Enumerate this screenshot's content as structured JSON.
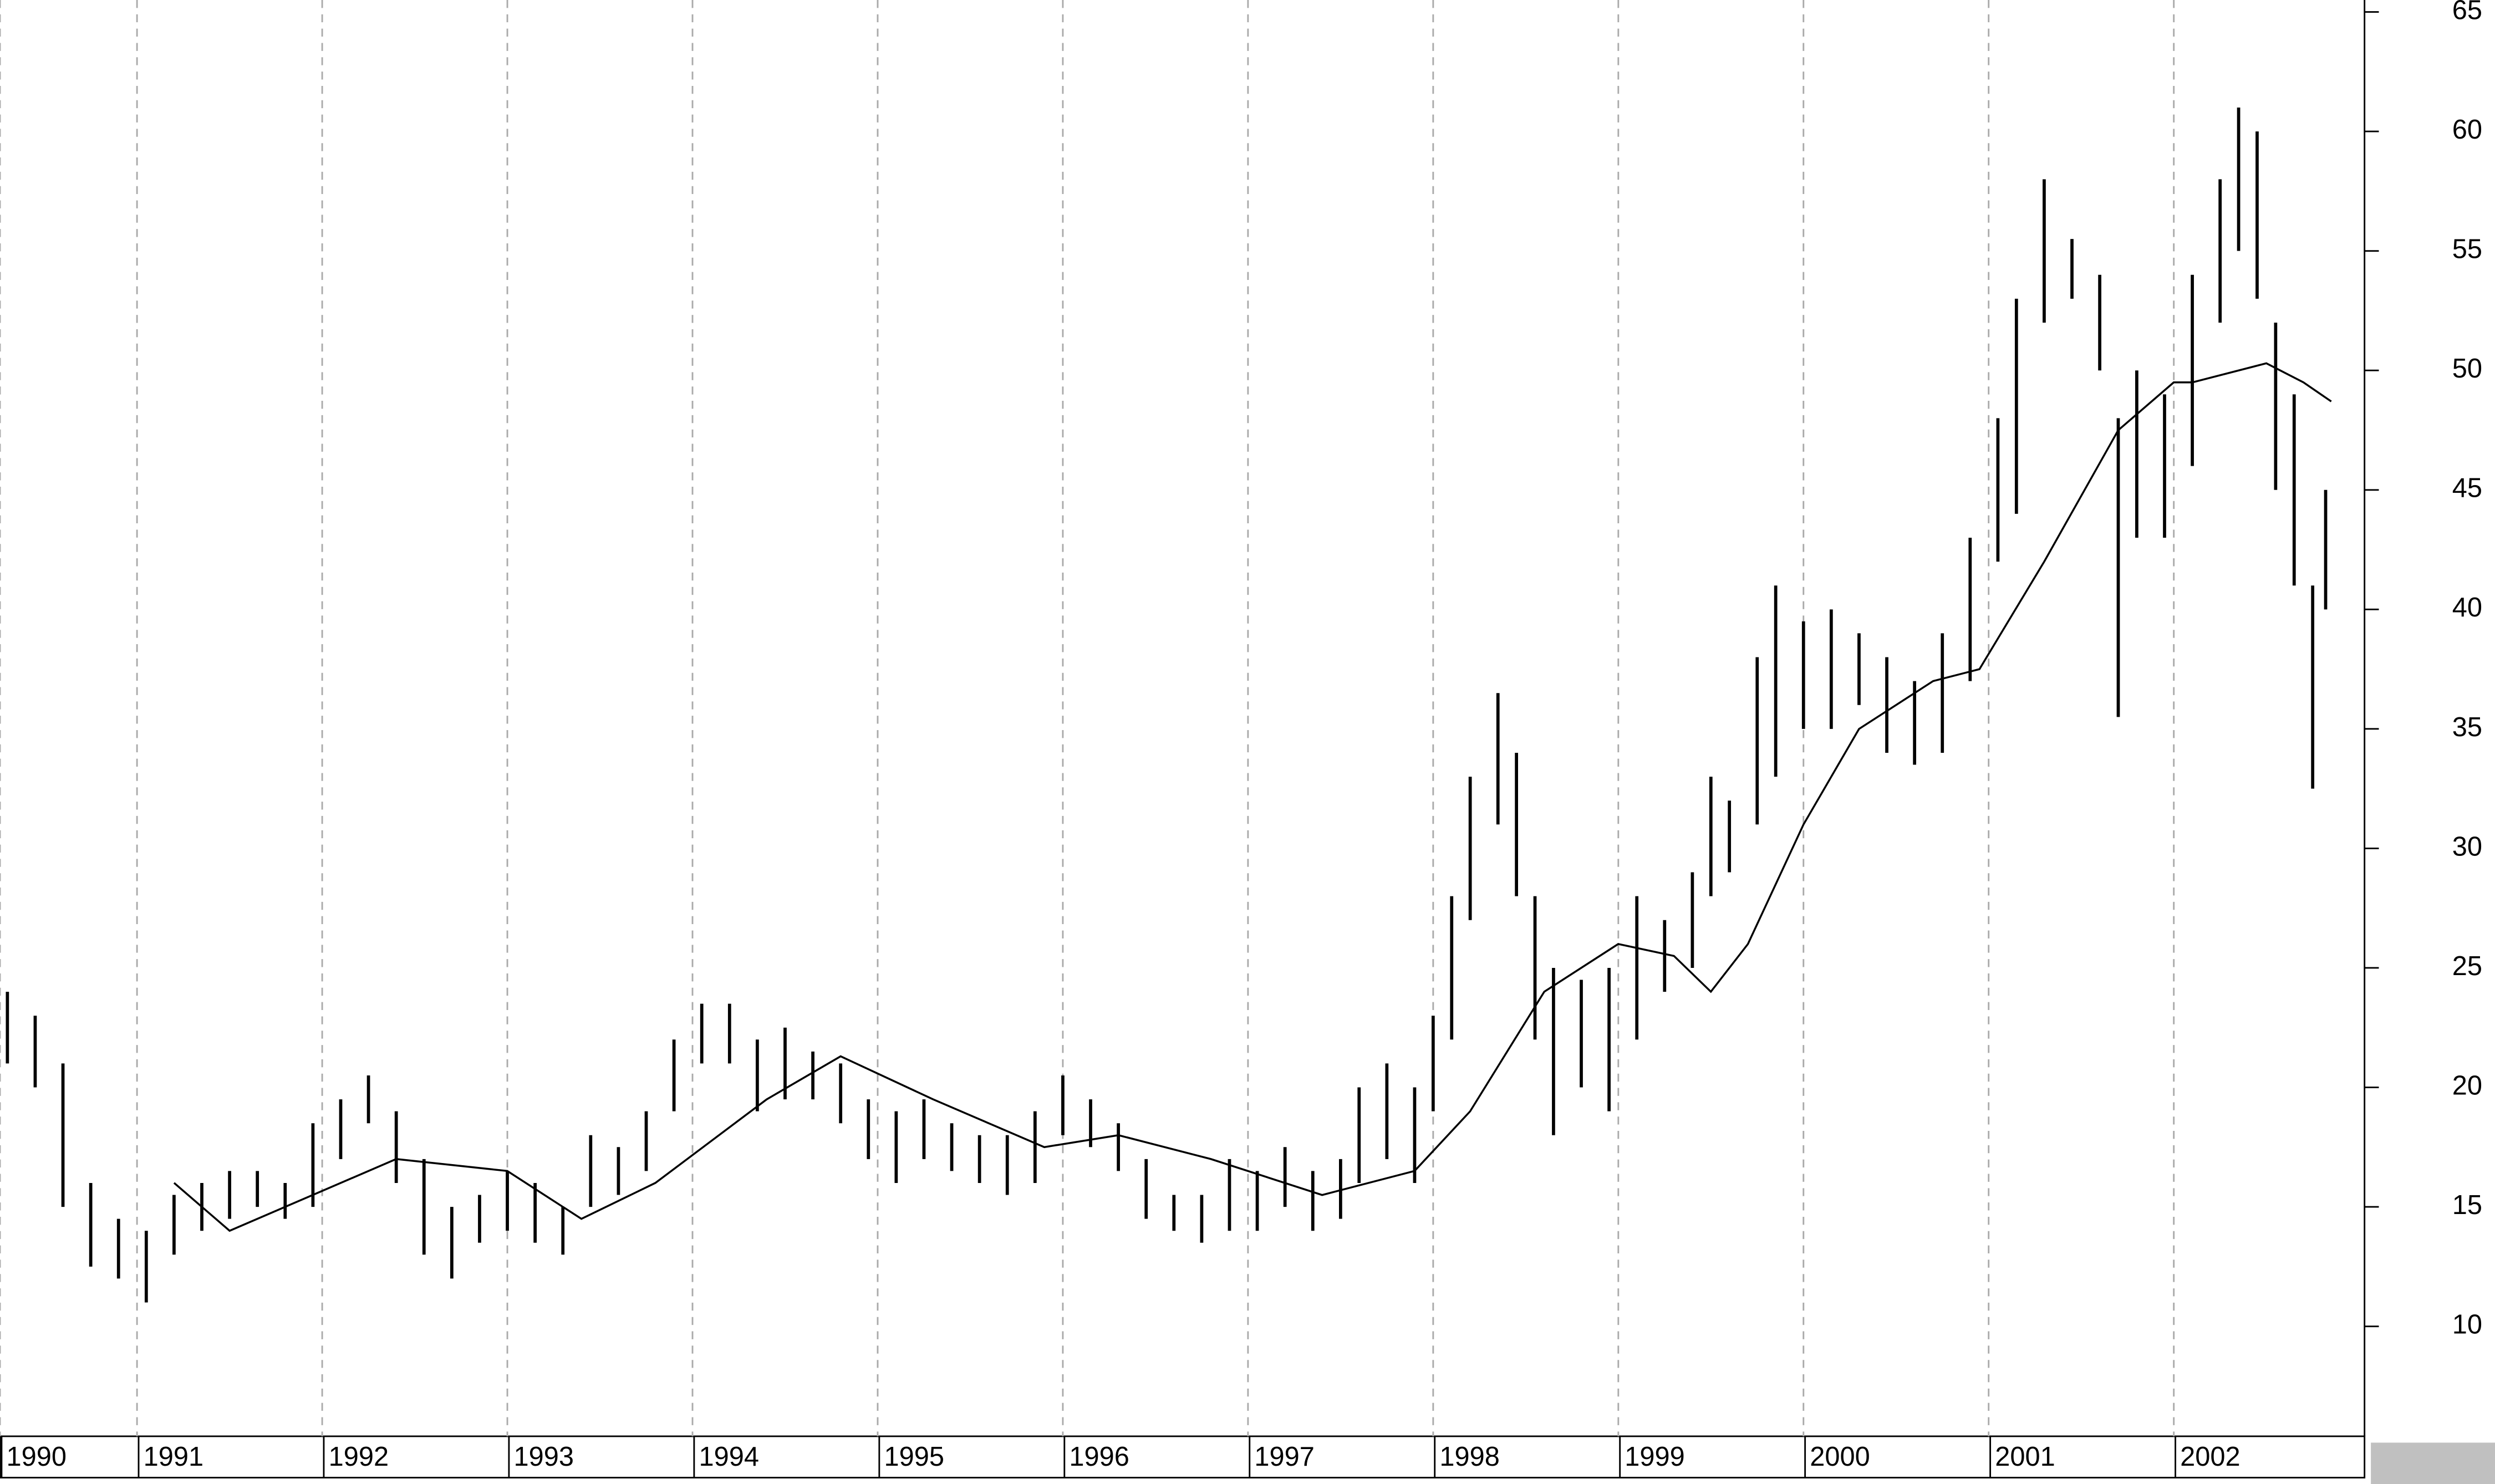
{
  "chart_data": {
    "type": "hlc",
    "xlim": [
      1990.26,
      2003.03
    ],
    "xticks": [
      {
        "value": 1990.26,
        "label": "1990"
      },
      1991,
      1992,
      1993,
      1994,
      1995,
      1996,
      1997,
      1998,
      1999,
      2000,
      2001,
      2002
    ],
    "ylim": [
      5.6,
      65.5
    ],
    "yticks": [
      10,
      15,
      20,
      25,
      30,
      35,
      40,
      45,
      50,
      55,
      60,
      65
    ],
    "grid": true,
    "color": "#000000",
    "bars": {
      "x": [
        1990.3,
        1990.45,
        1990.6,
        1990.75,
        1990.9,
        1991.05,
        1991.2,
        1991.35,
        1991.5,
        1991.65,
        1991.8,
        1991.95,
        1992.1,
        1992.25,
        1992.4,
        1992.55,
        1992.7,
        1992.85,
        1993.0,
        1993.15,
        1993.3,
        1993.45,
        1993.6,
        1993.75,
        1993.9,
        1994.05,
        1994.2,
        1994.35,
        1994.5,
        1994.65,
        1994.8,
        1994.95,
        1995.1,
        1995.25,
        1995.4,
        1995.55,
        1995.7,
        1995.85,
        1996.0,
        1996.15,
        1996.3,
        1996.45,
        1996.6,
        1996.75,
        1996.9,
        1997.05,
        1997.2,
        1997.35,
        1997.5,
        1997.6,
        1997.75,
        1997.9,
        1998.0,
        1998.1,
        1998.2,
        1998.35,
        1998.45,
        1998.55,
        1998.65,
        1998.8,
        1998.95,
        1999.1,
        1999.25,
        1999.4,
        1999.5,
        1999.6,
        1999.75,
        1999.85,
        2000.0,
        2000.15,
        2000.3,
        2000.45,
        2000.6,
        2000.75,
        2000.9,
        2001.05,
        2001.15,
        2001.3,
        2001.45,
        2001.6,
        2001.7,
        2001.8,
        2001.95,
        2002.1,
        2002.25,
        2002.35,
        2002.45,
        2002.55,
        2002.65,
        2002.75,
        2002.82
      ],
      "high": [
        24,
        23,
        21,
        16,
        14.5,
        14,
        15.5,
        16,
        16.5,
        16.5,
        16,
        18.5,
        19.5,
        20.5,
        19,
        17,
        15,
        15.5,
        16.5,
        16,
        15,
        18,
        17.5,
        19,
        22,
        23.5,
        23.5,
        22,
        22.5,
        21.5,
        21,
        19.5,
        19,
        19.5,
        18.5,
        18,
        18,
        19,
        20.5,
        19.5,
        18.5,
        17,
        15.5,
        15.5,
        17,
        16.5,
        17.5,
        16.5,
        17,
        20,
        21,
        20,
        23,
        28,
        33,
        36.5,
        34,
        28,
        25,
        24.5,
        25,
        28,
        27,
        29,
        33,
        32,
        38,
        41,
        39.5,
        40,
        39,
        38,
        37,
        39,
        43,
        48,
        53,
        58,
        55.5,
        54,
        48,
        50,
        49,
        54,
        58,
        61,
        60,
        52,
        49,
        41,
        45
      ],
      "low": [
        21,
        20,
        15,
        12.5,
        12,
        11,
        13,
        14,
        14.5,
        15,
        14.5,
        15,
        17,
        18.5,
        16,
        13,
        12,
        13.5,
        14,
        13.5,
        13,
        15,
        15.5,
        16.5,
        19,
        21,
        21,
        19,
        19.5,
        19.5,
        18.5,
        17,
        16,
        17,
        16.5,
        16,
        15.5,
        16,
        18,
        17.5,
        16.5,
        14.5,
        14,
        13.5,
        14,
        14,
        15,
        14,
        14.5,
        16,
        17,
        16,
        19,
        22,
        27,
        31,
        28,
        22,
        18,
        20,
        19,
        22,
        24,
        25,
        28,
        29,
        31,
        33,
        35,
        35,
        36,
        34,
        33.5,
        34,
        37,
        42,
        44,
        52,
        53,
        50,
        35.5,
        43,
        43,
        46,
        52,
        55,
        53,
        45,
        41,
        32.5,
        40
      ]
    },
    "line": {
      "x": [
        1991.2,
        1991.5,
        1992.4,
        1993.0,
        1993.4,
        1993.8,
        1994.4,
        1994.8,
        1995.3,
        1995.9,
        1996.3,
        1996.8,
        1997.4,
        1997.9,
        1998.2,
        1998.6,
        1999.0,
        1999.3,
        1999.5,
        1999.7,
        2000.0,
        2000.3,
        2000.7,
        2000.95,
        2001.3,
        2001.7,
        2002.0,
        2002.1,
        2002.5,
        2002.7,
        2002.85
      ],
      "values": [
        16,
        14,
        17,
        16.5,
        14.5,
        16,
        19.5,
        21.3,
        19.5,
        17.5,
        18,
        17,
        15.5,
        16.5,
        19,
        24,
        26,
        25.5,
        24,
        26,
        31,
        35,
        37,
        37.5,
        42,
        47.5,
        49.5,
        49.5,
        50.3,
        49.5,
        48.7
      ]
    }
  }
}
